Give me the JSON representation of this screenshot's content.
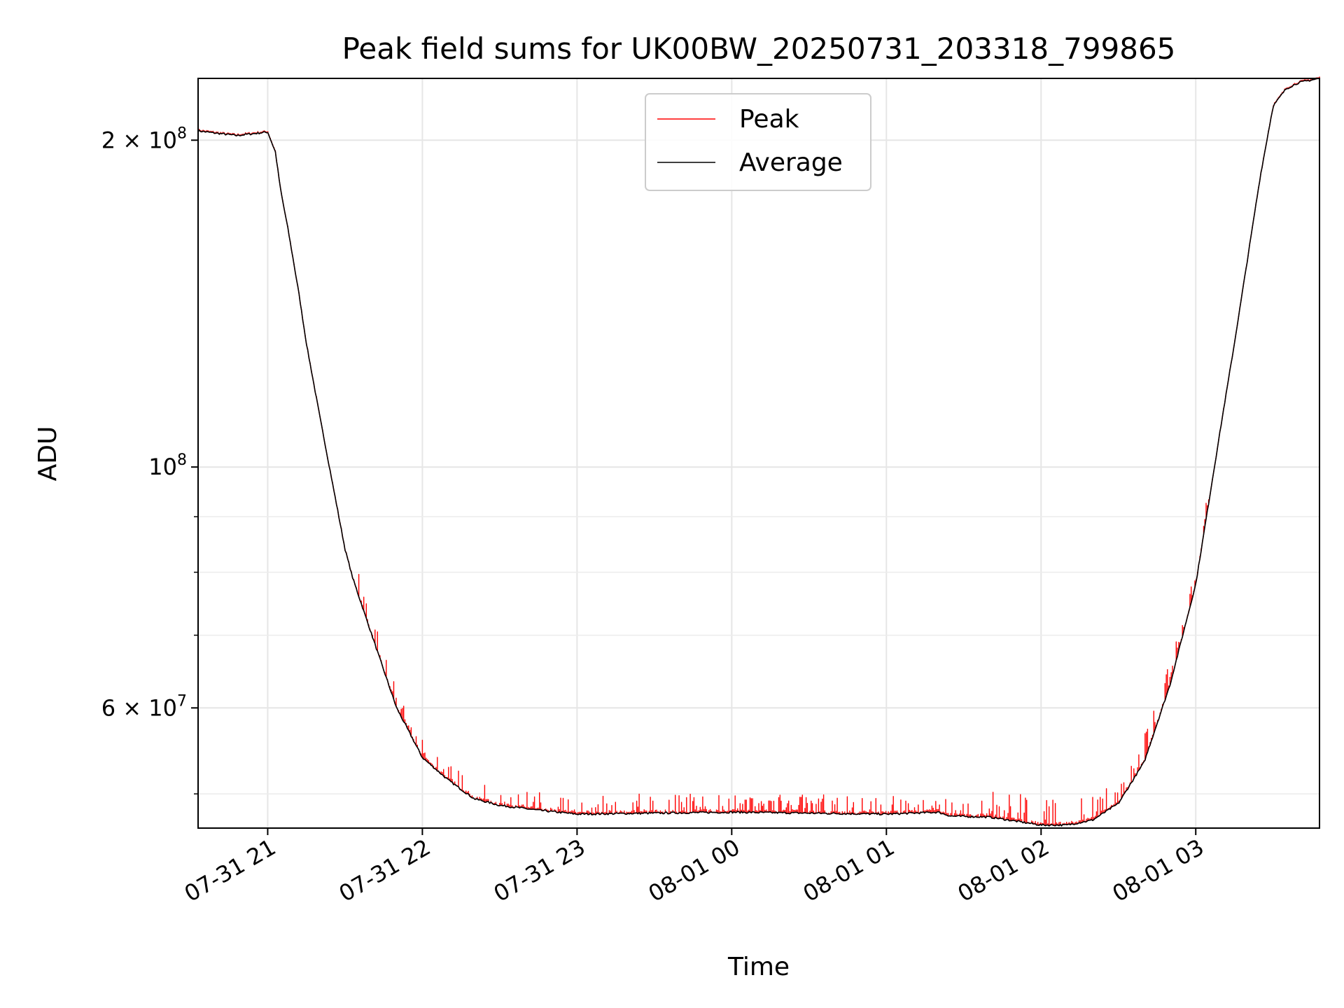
{
  "chart_data": {
    "type": "line",
    "title": "Peak field sums for UK00BW_20250731_203318_799865",
    "xlabel": "Time",
    "ylabel": "ADU",
    "x_ticks": [
      "07-31 21",
      "07-31 22",
      "07-31 23",
      "08-01 00",
      "08-01 01",
      "08-01 02",
      "08-01 03"
    ],
    "y_ticks": [
      {
        "value": 200000000,
        "mantissa": "2",
        "exponent": "8"
      },
      {
        "value": 100000000,
        "mantissa": "",
        "exponent": "8"
      },
      {
        "value": 60000000,
        "mantissa": "6",
        "exponent": "7"
      }
    ],
    "y_minor_ticks": [
      50000000,
      70000000,
      80000000,
      90000000
    ],
    "x_range": [
      "2025-07-31 20:33",
      "2025-08-01 03:48"
    ],
    "ylim": [
      46500000,
      228000000
    ],
    "y_scale": "log",
    "grid": true,
    "legend_position": "upper-center",
    "series": [
      {
        "name": "Peak",
        "color": "#ff0000"
      },
      {
        "name": "Average",
        "color": "#000000"
      }
    ],
    "average_points": [
      [
        "2025-07-31 20:33",
        204000000
      ],
      [
        "2025-07-31 20:40",
        203000000
      ],
      [
        "2025-07-31 20:48",
        202000000
      ],
      [
        "2025-07-31 21:00",
        203500000
      ],
      [
        "2025-07-31 21:03",
        195000000
      ],
      [
        "2025-07-31 21:05",
        180000000
      ],
      [
        "2025-07-31 21:08",
        165000000
      ],
      [
        "2025-07-31 21:12",
        145000000
      ],
      [
        "2025-07-31 21:15",
        130000000
      ],
      [
        "2025-07-31 21:20",
        112000000
      ],
      [
        "2025-07-31 21:25",
        97000000
      ],
      [
        "2025-07-31 21:30",
        84000000
      ],
      [
        "2025-07-31 21:33",
        79000000
      ],
      [
        "2025-07-31 21:37",
        74000000
      ],
      [
        "2025-07-31 21:45",
        65000000
      ],
      [
        "2025-07-31 21:50",
        60000000
      ],
      [
        "2025-07-31 22:00",
        54000000
      ],
      [
        "2025-07-31 22:10",
        51500000
      ],
      [
        "2025-07-31 22:20",
        49500000
      ],
      [
        "2025-07-31 22:30",
        48800000
      ],
      [
        "2025-07-31 22:45",
        48300000
      ],
      [
        "2025-07-31 23:00",
        47900000
      ],
      [
        "2025-07-31 23:30",
        48000000
      ],
      [
        "2025-08-01 00:00",
        48100000
      ],
      [
        "2025-08-01 00:30",
        48000000
      ],
      [
        "2025-08-01 01:00",
        47900000
      ],
      [
        "2025-08-01 01:20",
        48100000
      ],
      [
        "2025-08-01 01:25",
        47700000
      ],
      [
        "2025-08-01 01:40",
        47600000
      ],
      [
        "2025-08-01 01:50",
        47200000
      ],
      [
        "2025-08-01 02:00",
        46800000
      ],
      [
        "2025-08-01 02:10",
        46800000
      ],
      [
        "2025-08-01 02:20",
        47300000
      ],
      [
        "2025-08-01 02:30",
        49000000
      ],
      [
        "2025-08-01 02:40",
        53500000
      ],
      [
        "2025-08-01 02:50",
        63000000
      ],
      [
        "2025-08-01 03:00",
        78000000
      ],
      [
        "2025-08-01 03:10",
        110000000
      ],
      [
        "2025-08-01 03:15",
        130000000
      ],
      [
        "2025-08-01 03:20",
        155000000
      ],
      [
        "2025-08-01 03:25",
        185000000
      ],
      [
        "2025-08-01 03:30",
        215000000
      ],
      [
        "2025-08-01 03:35",
        223000000
      ],
      [
        "2025-08-01 03:40",
        226000000
      ],
      [
        "2025-08-01 03:48",
        228000000
      ]
    ],
    "peak_spike_bands": [
      {
        "from": "2025-07-31 21:35",
        "to": "2025-07-31 22:20",
        "max_excess": 0.05
      },
      {
        "from": "2025-07-31 22:20",
        "to": "2025-08-01 01:40",
        "max_excess": 0.04
      },
      {
        "from": "2025-08-01 01:40",
        "to": "2025-08-01 02:50",
        "max_excess": 0.06
      },
      {
        "from": "2025-08-01 02:50",
        "to": "2025-08-01 03:05",
        "max_excess": 0.04
      }
    ]
  }
}
